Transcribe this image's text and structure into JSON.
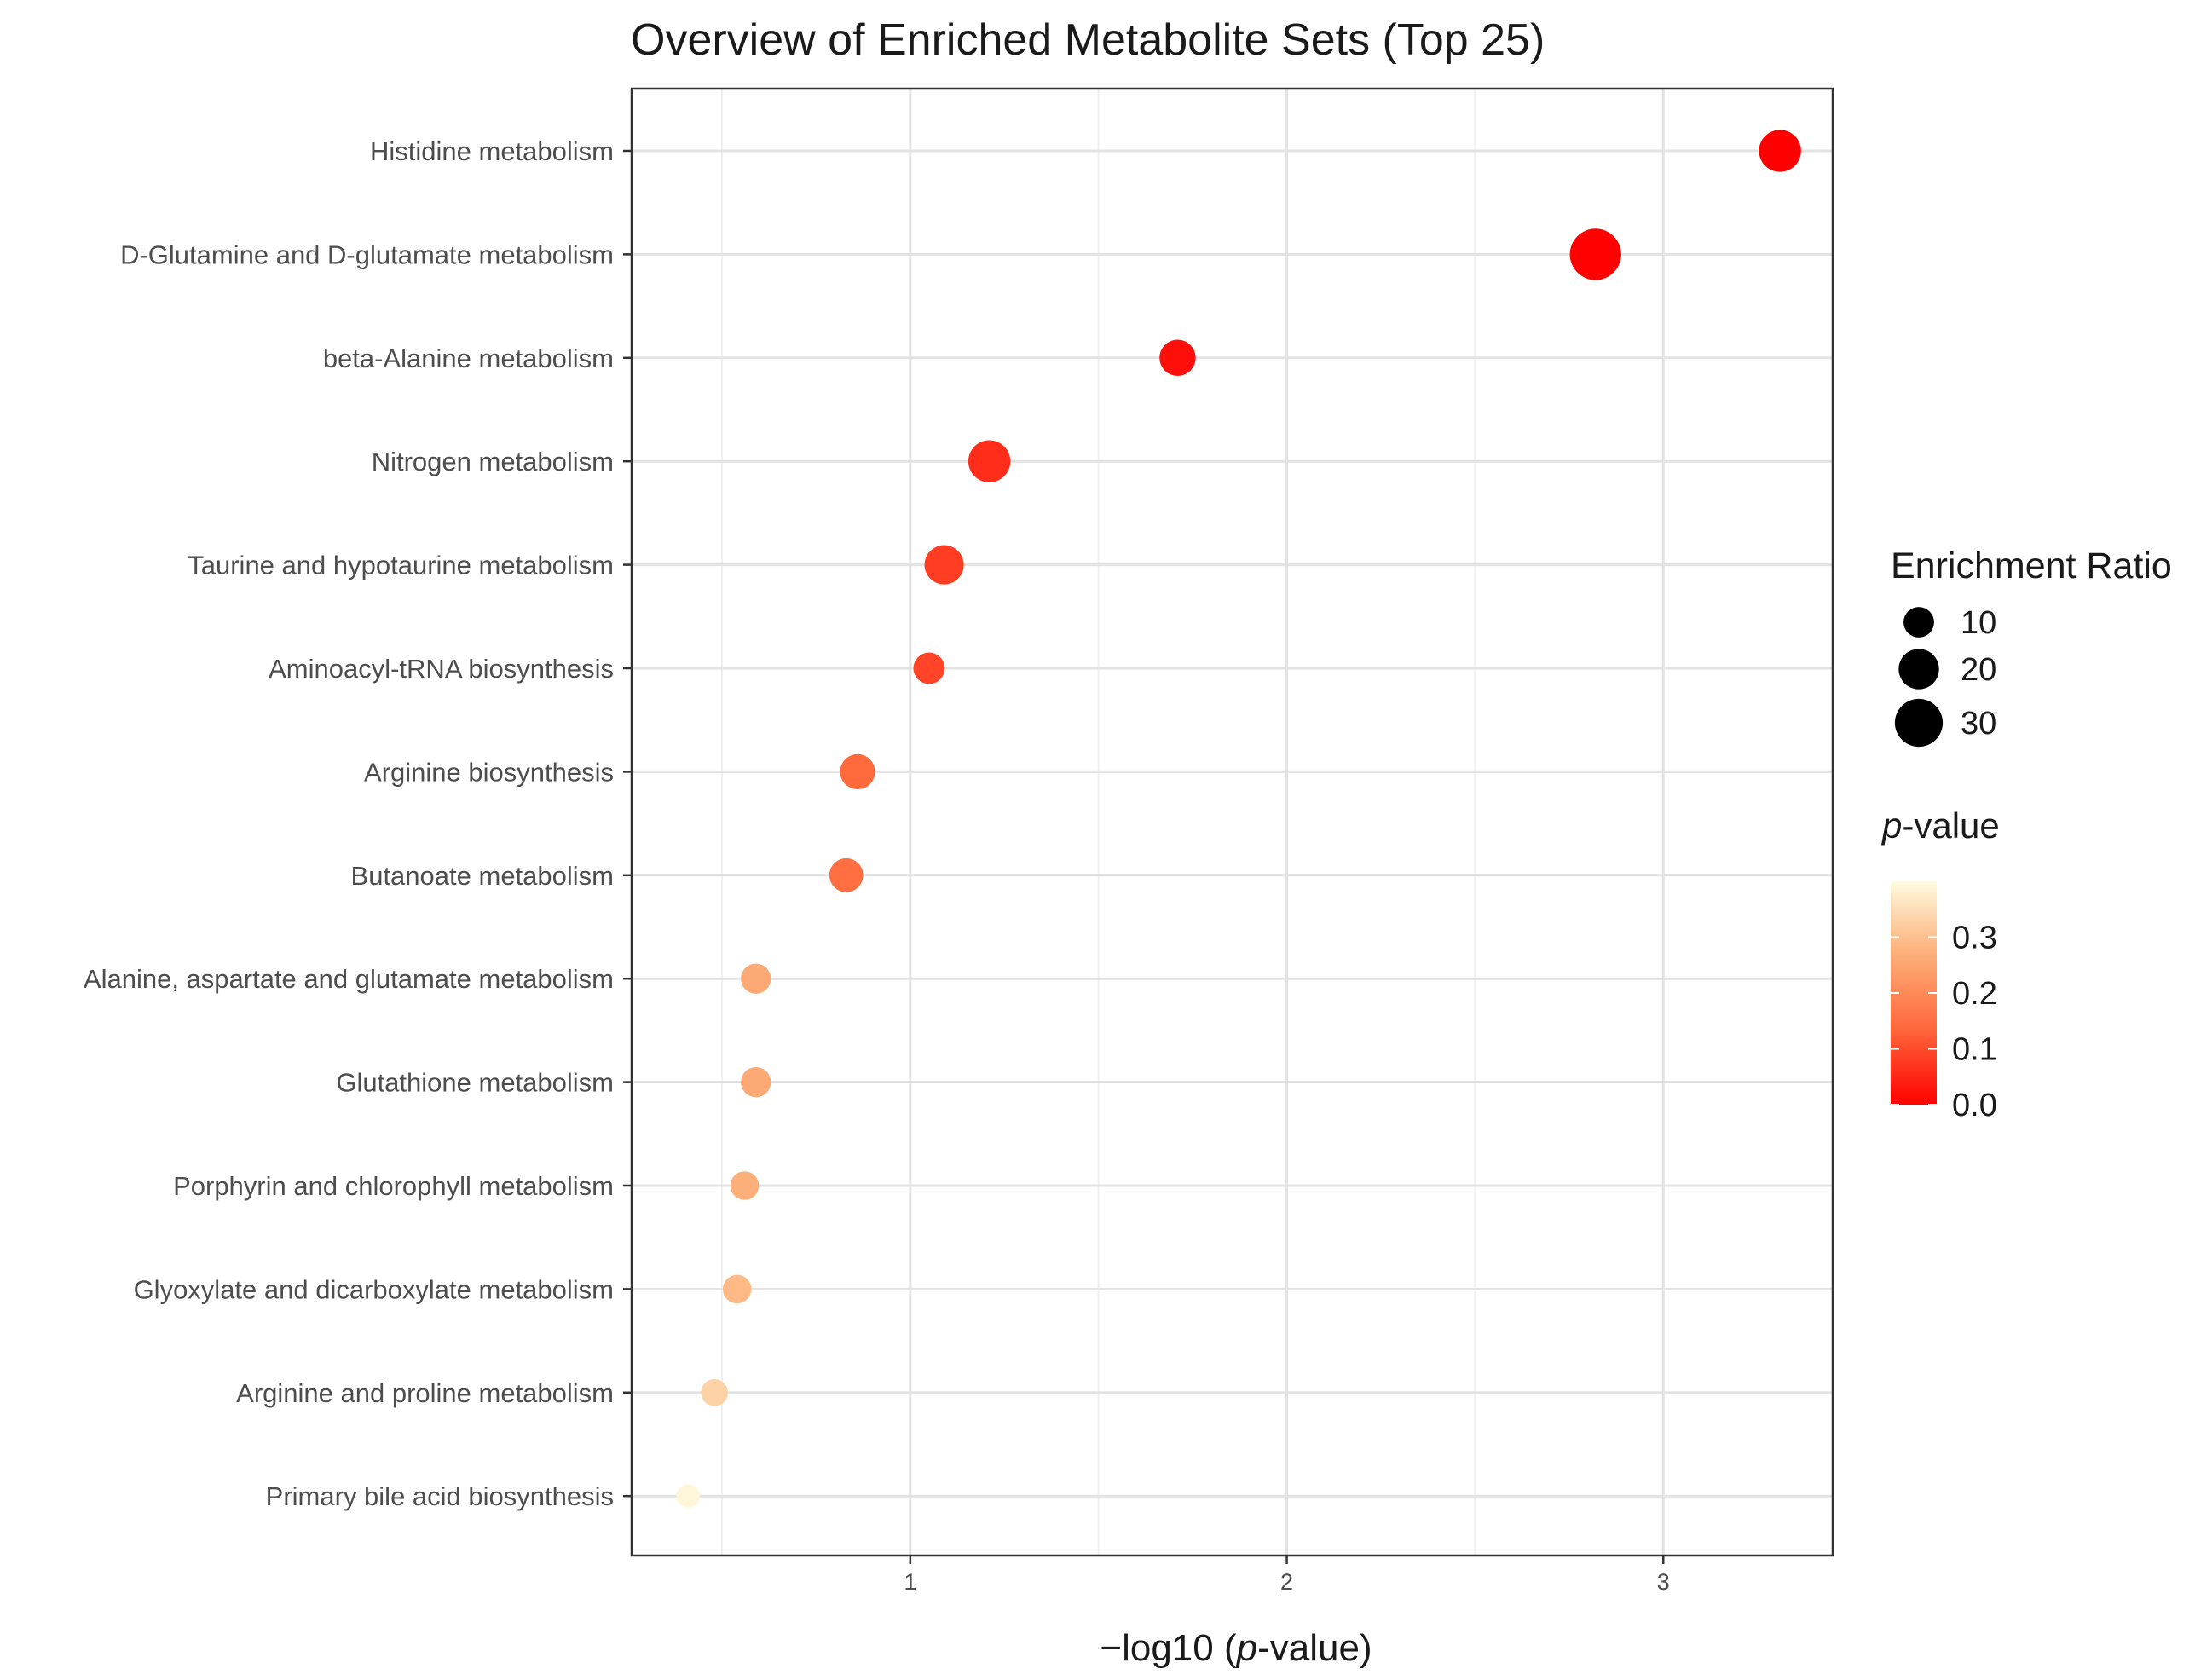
{
  "chart_data": {
    "type": "scatter",
    "title": "Overview of Enriched Metabolite Sets (Top 25)",
    "xlabel_parts": [
      "−log10 (",
      "p",
      "-value)"
    ],
    "ylabel": "",
    "xlim": [
      0.26,
      3.45
    ],
    "x_ticks": [
      1,
      2,
      3
    ],
    "x_tick_labels": [
      "1",
      "2",
      "3"
    ],
    "x_minor_gridlines": [
      0.5,
      1.5,
      2.5
    ],
    "grid": true,
    "legend_position": "right",
    "categories": [
      "Histidine metabolism",
      "D-Glutamine and D-glutamate metabolism",
      "beta-Alanine metabolism",
      "Nitrogen metabolism",
      "Taurine and hypotaurine metabolism",
      "Aminoacyl-tRNA biosynthesis",
      "Arginine biosynthesis",
      "Butanoate metabolism",
      "Alanine, aspartate and glutamate metabolism",
      "Glutathione metabolism",
      "Porphyrin and chlorophyll metabolism",
      "Glyoxylate and dicarboxylate metabolism",
      "Arginine and proline metabolism",
      "Primary bile acid biosynthesis"
    ],
    "x": [
      3.31,
      2.82,
      1.71,
      1.21,
      1.09,
      1.05,
      0.86,
      0.83,
      0.59,
      0.59,
      0.56,
      0.54,
      0.48,
      0.41
    ],
    "p_values": [
      0.0005,
      0.0015,
      0.02,
      0.06,
      0.08,
      0.09,
      0.14,
      0.15,
      0.26,
      0.26,
      0.27,
      0.29,
      0.33,
      0.39
    ],
    "enrichment_ratio": [
      18,
      30,
      12,
      18,
      15,
      8,
      11,
      10,
      7,
      7,
      6,
      6,
      5,
      3
    ],
    "size_legend": {
      "title": "Enrichment Ratio",
      "values": [
        10,
        20,
        30
      ],
      "labels": [
        "10",
        "20",
        "30"
      ]
    },
    "color_legend": {
      "title_parts": [
        "p",
        "-value"
      ],
      "range": [
        0.0,
        0.4
      ],
      "ticks": [
        0.3,
        0.2,
        0.1,
        0.0
      ],
      "tick_labels": [
        "0.3",
        "0.2",
        "0.1",
        "0.0"
      ],
      "low_color": "#ff0000",
      "high_color": "#fffbe0"
    }
  }
}
